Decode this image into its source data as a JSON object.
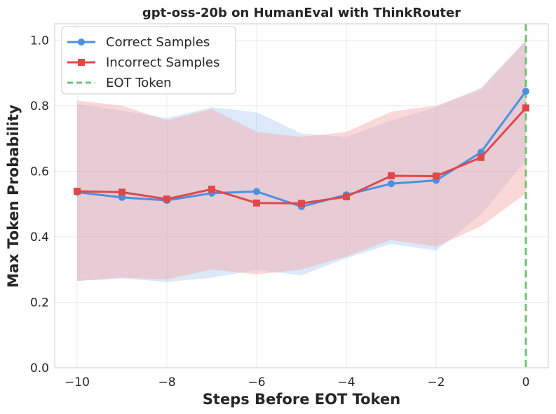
{
  "chart_data": {
    "type": "line",
    "title": "gpt-oss-20b on HumanEval with ThinkRouter",
    "xlabel": "Steps Before EOT Token",
    "ylabel": "Max Token Probability",
    "xlim": [
      -10.5,
      0.5
    ],
    "ylim": [
      0.0,
      1.05
    ],
    "x": [
      -10,
      -9,
      -8,
      -7,
      -6,
      -5,
      -4,
      -3,
      -2,
      -1,
      0
    ],
    "xticks": [
      -10,
      -8,
      -6,
      -4,
      -2,
      0
    ],
    "xtick_labels": [
      "−10",
      "−8",
      "−6",
      "−4",
      "−2",
      "0"
    ],
    "yticks": [
      0.0,
      0.2,
      0.4,
      0.6,
      0.8,
      1.0
    ],
    "ytick_labels": [
      "0.0",
      "0.2",
      "0.4",
      "0.6",
      "0.8",
      "1.0"
    ],
    "grid": true,
    "legend_position": "top-left",
    "series": [
      {
        "name": "Correct Samples",
        "color": "#4a90e2",
        "marker": "circle",
        "values": [
          0.536,
          0.52,
          0.511,
          0.533,
          0.538,
          0.492,
          0.528,
          0.562,
          0.572,
          0.658,
          0.844
        ],
        "band_upper": [
          0.805,
          0.785,
          0.762,
          0.795,
          0.78,
          0.715,
          0.705,
          0.755,
          0.795,
          0.855,
          1.0
        ],
        "band_lower": [
          0.265,
          0.273,
          0.262,
          0.275,
          0.298,
          0.282,
          0.335,
          0.378,
          0.358,
          0.468,
          0.632
        ],
        "band_color": "#4a90e2"
      },
      {
        "name": "Incorrect Samples",
        "color": "#e04848",
        "marker": "square",
        "values": [
          0.539,
          0.536,
          0.515,
          0.545,
          0.503,
          0.502,
          0.522,
          0.586,
          0.585,
          0.642,
          0.793
        ],
        "band_upper": [
          0.816,
          0.8,
          0.755,
          0.79,
          0.72,
          0.705,
          0.72,
          0.782,
          0.8,
          0.85,
          0.998
        ],
        "band_lower": [
          0.265,
          0.275,
          0.27,
          0.3,
          0.285,
          0.3,
          0.34,
          0.39,
          0.37,
          0.432,
          0.532
        ],
        "band_color": "#f7a8a8"
      }
    ],
    "vline": {
      "x": 0,
      "name": "EOT Token",
      "color": "#6cc56c",
      "style": "dashed"
    }
  }
}
